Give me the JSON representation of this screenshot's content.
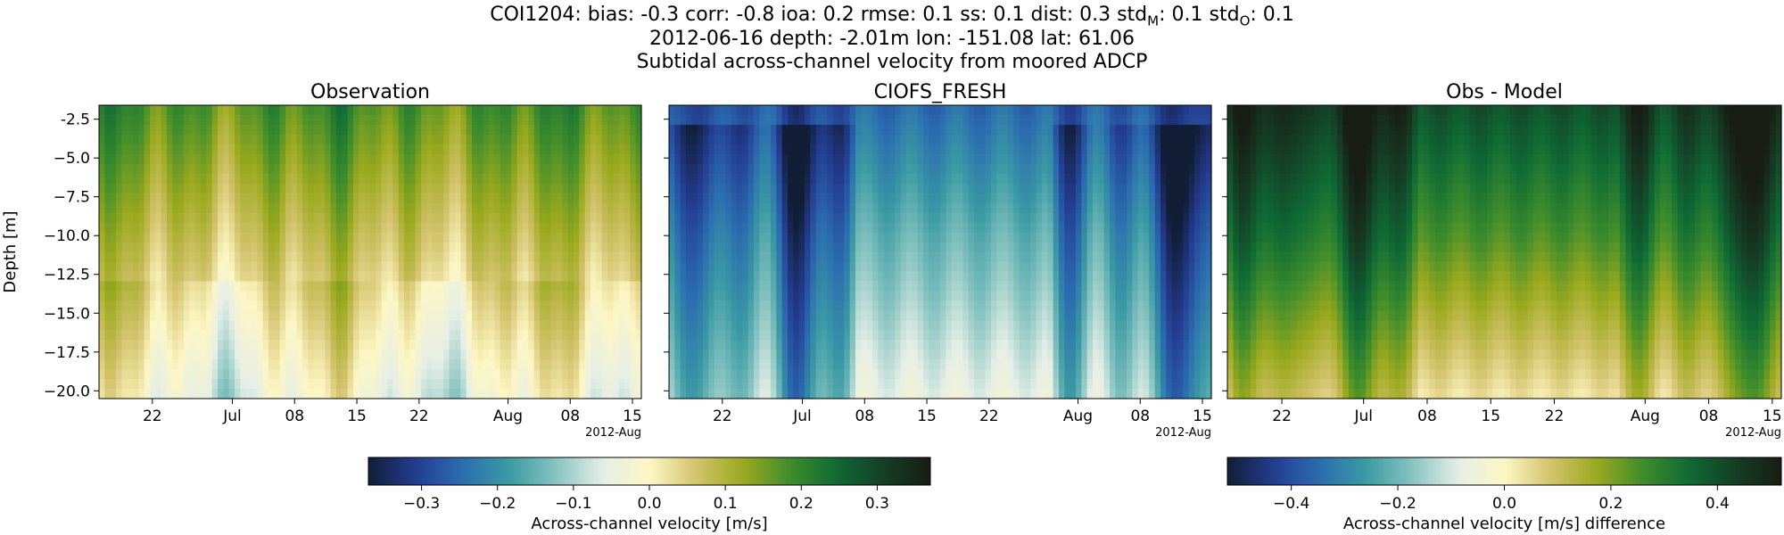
{
  "header": {
    "stats_prefix": "COI1204: bias: -0.3  corr: -0.8  ioa: 0.2  rmse: 0.1  ss: 0.1  dist: 0.3  std",
    "std_m_sub": "M",
    "std_m_value": ": 0.1  std",
    "std_o_sub": "O",
    "std_o_value": ": 0.1",
    "line2": "2012-06-16 depth: -2.01m lon: -151.08 lat: 61.06",
    "line3": "Subtidal across-channel velocity from moored ADCP"
  },
  "colors": {
    "colormap_delta": [
      "#111e36",
      "#243c91",
      "#2b6db0",
      "#3b9aa4",
      "#86c3c0",
      "#e6efe7",
      "#fdf6c4",
      "#d3c36c",
      "#9ba91e",
      "#3f8d2c",
      "#0f6a35",
      "#153e26",
      "#181d13"
    ]
  },
  "chart_data": [
    {
      "type": "heatmap",
      "title": "Observation",
      "ylabel": "Depth [m]",
      "ylim": [
        -20.5,
        -1.6
      ],
      "yticks": [
        "-2.5",
        "−5.0",
        "−7.5",
        "−10.0",
        "−12.5",
        "−15.0",
        "−17.5",
        "−20.0"
      ],
      "ytick_values": [
        -2.5,
        -5.0,
        -7.5,
        -10.0,
        -12.5,
        -15.0,
        -17.5,
        -20.0
      ],
      "xlim": [
        "2012-06-16",
        "2012-08-16"
      ],
      "xticks": [
        "22",
        "Jul",
        "08",
        "15",
        "22",
        "Aug",
        "08",
        "15"
      ],
      "xtick_dates": [
        "2012-06-22",
        "2012-07-01",
        "2012-07-08",
        "2012-07-15",
        "2012-07-22",
        "2012-08-01",
        "2012-08-08",
        "2012-08-15"
      ],
      "x_offset_label": "2012-Aug",
      "approx_values": {
        "surface": 0.18,
        "mid_depth": 0.08,
        "bottom": -0.04
      },
      "color_range": [
        -0.37,
        0.37
      ]
    },
    {
      "type": "heatmap",
      "title": "CIOFS_FRESH",
      "ylim": [
        -20.5,
        -1.6
      ],
      "xlim": [
        "2012-06-16",
        "2012-08-16"
      ],
      "xticks": [
        "22",
        "Jul",
        "08",
        "15",
        "22",
        "Aug",
        "08",
        "15"
      ],
      "x_offset_label": "2012-Aug",
      "approx_values": {
        "surface": -0.3,
        "mid_depth": -0.2,
        "bottom": -0.1
      },
      "color_range": [
        -0.37,
        0.37
      ]
    },
    {
      "type": "heatmap",
      "title": "Obs - Model",
      "ylim": [
        -20.5,
        -1.6
      ],
      "xlim": [
        "2012-06-16",
        "2012-08-16"
      ],
      "xticks": [
        "22",
        "Jul",
        "08",
        "15",
        "22",
        "Aug",
        "08",
        "15"
      ],
      "x_offset_label": "2012-Aug",
      "approx_values": {
        "surface": 0.45,
        "mid_depth": 0.3,
        "bottom": 0.08
      },
      "color_range": [
        -0.52,
        0.52
      ]
    }
  ],
  "colorbars": [
    {
      "label": "Across-channel velocity [m/s]",
      "range": [
        -0.37,
        0.37
      ],
      "ticks": [
        "−0.3",
        "−0.2",
        "−0.1",
        "0.0",
        "0.1",
        "0.2",
        "0.3"
      ],
      "tick_values": [
        -0.3,
        -0.2,
        -0.1,
        0.0,
        0.1,
        0.2,
        0.3
      ]
    },
    {
      "label": "Across-channel velocity [m/s] difference",
      "range": [
        -0.52,
        0.52
      ],
      "ticks": [
        "−0.4",
        "−0.2",
        "0.0",
        "0.2",
        "0.4"
      ],
      "tick_values": [
        -0.4,
        -0.2,
        0.0,
        0.2,
        0.4
      ]
    }
  ]
}
